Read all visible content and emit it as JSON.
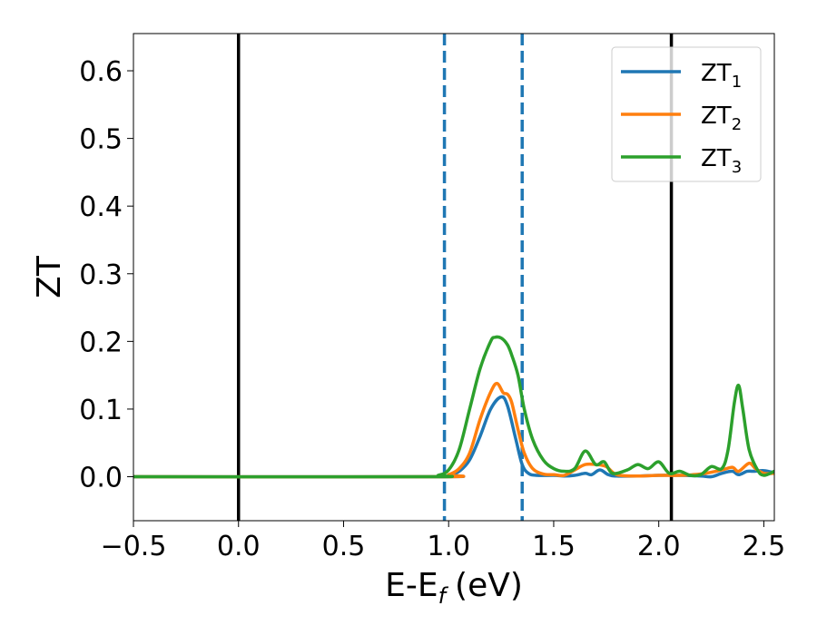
{
  "chart_data": {
    "type": "line",
    "title": "",
    "xlabel": "E-E",
    "xlabel_sub": "f",
    "xlabel_unit": "(eV)",
    "ylabel": "ZT",
    "xlim": [
      -0.5,
      2.55
    ],
    "ylim": [
      -0.065,
      0.655
    ],
    "x_ticks": [
      -0.5,
      0.0,
      0.5,
      1.0,
      1.5,
      2.0,
      2.5
    ],
    "x_tick_labels": [
      "−0.5",
      "0.0",
      "0.5",
      "1.0",
      "1.5",
      "2.0",
      "2.5"
    ],
    "y_ticks": [
      0.0,
      0.1,
      0.2,
      0.3,
      0.4,
      0.5,
      0.6
    ],
    "y_tick_labels": [
      "0.0",
      "0.1",
      "0.2",
      "0.3",
      "0.4",
      "0.5",
      "0.6"
    ],
    "grid": false,
    "legend_position": "top-right",
    "vlines": [
      {
        "x": 0.0,
        "style": "solid",
        "color": "#000000"
      },
      {
        "x": 2.06,
        "style": "solid",
        "color": "#000000"
      },
      {
        "x": 0.98,
        "style": "dashed",
        "color": "#1f77b4"
      },
      {
        "x": 1.35,
        "style": "dashed",
        "color": "#1f77b4"
      }
    ],
    "series": [
      {
        "name": "ZT",
        "name_sub": "1",
        "color": "#1f77b4",
        "x": [
          -0.5,
          0.95,
          1.0,
          1.05,
          1.1,
          1.15,
          1.2,
          1.25,
          1.28,
          1.32,
          1.35,
          1.38,
          1.42,
          1.5,
          1.55,
          1.6,
          1.65,
          1.68,
          1.72,
          1.76,
          1.8,
          1.9,
          2.0,
          2.1,
          2.2,
          2.25,
          2.3,
          2.35,
          2.38,
          2.42,
          2.45,
          2.5,
          2.55
        ],
        "y": [
          0.0,
          0.0,
          0.002,
          0.008,
          0.025,
          0.06,
          0.1,
          0.118,
          0.105,
          0.055,
          0.018,
          0.005,
          0.002,
          0.002,
          0.001,
          0.002,
          0.005,
          0.003,
          0.01,
          0.003,
          0.001,
          0.001,
          0.002,
          0.002,
          0.001,
          0.0,
          0.005,
          0.008,
          0.003,
          0.008,
          0.008,
          0.009,
          0.006
        ]
      },
      {
        "name": "ZT",
        "name_sub": "2",
        "color": "#ff7f0e",
        "x": [
          -0.5,
          0.95,
          1.0,
          1.05,
          1.1,
          1.15,
          1.2,
          1.23,
          1.26,
          1.28,
          1.3,
          1.33,
          1.36,
          1.4,
          1.45,
          1.5,
          1.55,
          1.6,
          1.65,
          1.7,
          1.75,
          1.8,
          1.9,
          2.0,
          2.1,
          2.2,
          2.3,
          2.35,
          2.38,
          2.43,
          2.46,
          2.5,
          2.55
        ],
        "y": [
          0.0,
          0.0,
          0.003,
          0.012,
          0.035,
          0.085,
          0.125,
          0.138,
          0.124,
          0.122,
          0.11,
          0.07,
          0.035,
          0.012,
          0.004,
          0.003,
          0.002,
          0.01,
          0.018,
          0.018,
          0.015,
          0.003,
          0.001,
          0.002,
          0.002,
          0.004,
          0.01,
          0.014,
          0.008,
          0.02,
          0.012,
          0.005,
          0.005
        ]
      },
      {
        "name": "ZT",
        "name_sub": "3",
        "color": "#2ca02c",
        "x": [
          -0.5,
          0.9,
          0.95,
          1.0,
          1.05,
          1.1,
          1.15,
          1.2,
          1.22,
          1.25,
          1.28,
          1.3,
          1.33,
          1.36,
          1.4,
          1.45,
          1.5,
          1.55,
          1.6,
          1.65,
          1.7,
          1.74,
          1.78,
          1.85,
          1.9,
          1.95,
          2.0,
          2.05,
          2.1,
          2.15,
          2.2,
          2.25,
          2.3,
          2.33,
          2.36,
          2.38,
          2.4,
          2.43,
          2.47,
          2.5,
          2.55
        ],
        "y": [
          0.0,
          0.0,
          0.002,
          0.01,
          0.04,
          0.1,
          0.16,
          0.2,
          0.206,
          0.205,
          0.195,
          0.18,
          0.15,
          0.1,
          0.055,
          0.025,
          0.012,
          0.008,
          0.012,
          0.038,
          0.018,
          0.022,
          0.005,
          0.01,
          0.018,
          0.012,
          0.022,
          0.005,
          0.008,
          0.002,
          0.003,
          0.015,
          0.012,
          0.04,
          0.11,
          0.135,
          0.1,
          0.04,
          0.01,
          0.002,
          0.008
        ]
      }
    ]
  }
}
